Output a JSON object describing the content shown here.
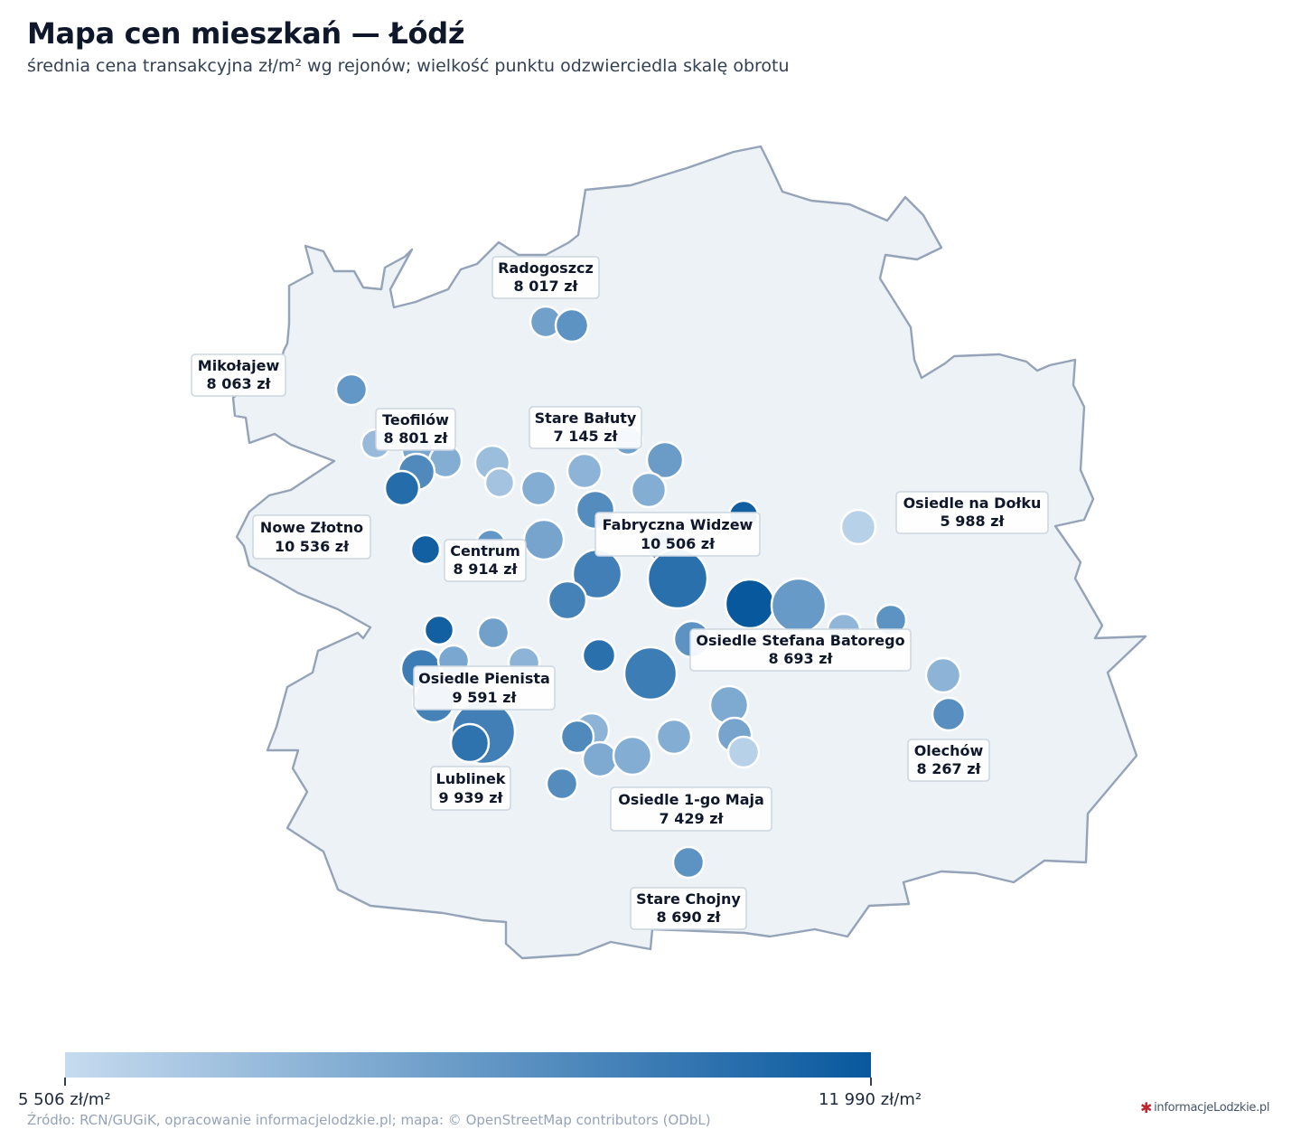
{
  "title": "Mapa cen mieszkań — Łódź",
  "subtitle": "średnia cena transakcyjna zł/m² wg rejonów; wielkość punktu odzwierciedla skalę obrotu",
  "colors": {
    "boundary_fill": "#edf2f7",
    "boundary_stroke": "#94a3b8",
    "scale_low": "#c6dbef",
    "scale_high": "#08589e",
    "marker_stroke": "#ffffff"
  },
  "scale": {
    "min_label": "5 506 zł/m²",
    "max_label": "11 990 zł/m²",
    "min": 5506,
    "max": 11990
  },
  "districts": [
    {
      "name": "Radogoszcz",
      "price": "8 017 zł"
    },
    {
      "name": "Mikołajew",
      "price": "8 063 zł"
    },
    {
      "name": "Teofilów",
      "price": "8 801 zł"
    },
    {
      "name": "Stare Bałuty",
      "price": "7 145 zł"
    },
    {
      "name": "Osiedle na Dołku",
      "price": "5 988 zł"
    },
    {
      "name": "Nowe Złotno",
      "price": "10 536 zł"
    },
    {
      "name": "Centrum",
      "price": "8 914 zł"
    },
    {
      "name": "Fabryczna Widzew",
      "price": "10 506 zł"
    },
    {
      "name": "Osiedle Stefana Batorego",
      "price": "8 693 zł"
    },
    {
      "name": "Osiedle Pienista",
      "price": "9 591 zł"
    },
    {
      "name": "Olechów",
      "price": "8 267 zł"
    },
    {
      "name": "Lublinek",
      "price": "9 939 zł"
    },
    {
      "name": "Osiedle 1-go Maja",
      "price": "7 429 zł"
    },
    {
      "name": "Stare Chojny",
      "price": "8 690 zł"
    }
  ],
  "source": "Źródło: RCN/GUGiK, opracowanie informacjelodzkie.pl; mapa: © OpenStreetMap contributors (ODbL)",
  "brand": {
    "text": "informacjeLodzkie.pl",
    "icon": "snowflake-logo-icon"
  }
}
